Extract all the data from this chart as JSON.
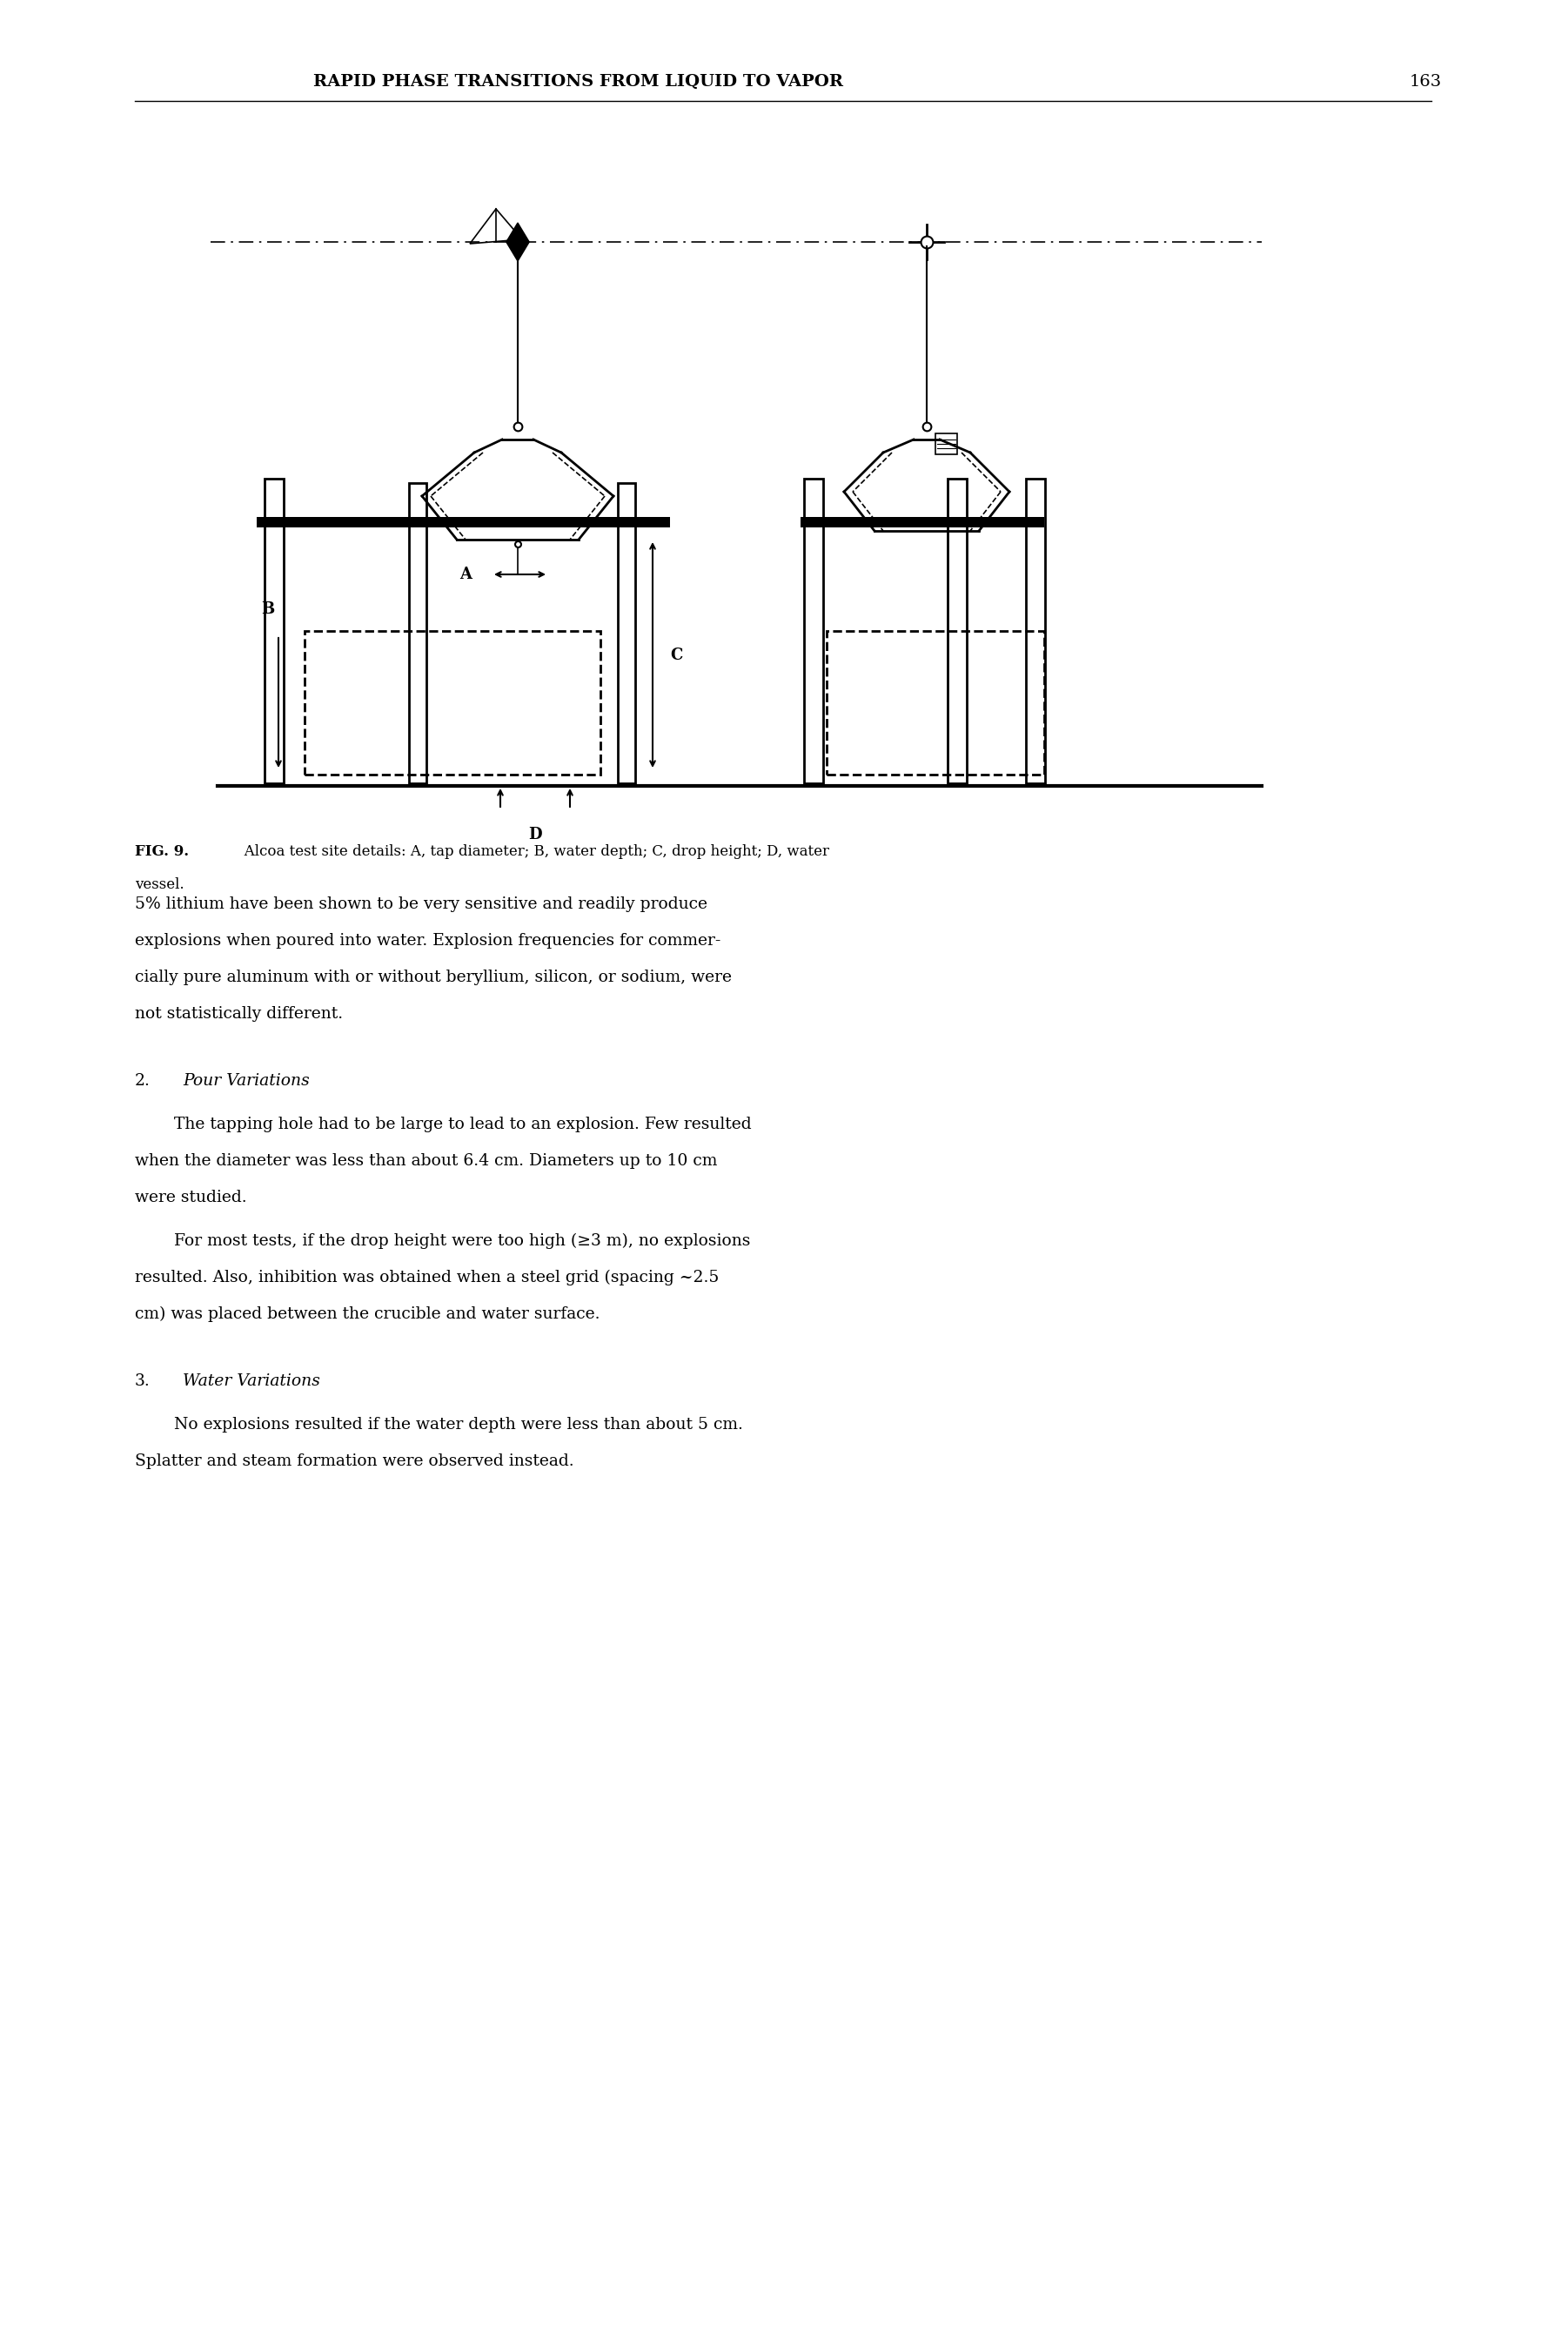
{
  "page_title": "RAPID PHASE TRANSITIONS FROM LIQUID TO VAPOR",
  "page_number": "163",
  "fig_caption_bold": "FIG. 9.",
  "fig_caption_rest": "   Alcoa test site details: A, tap diameter; B, water depth; C, drop height; D, water",
  "fig_caption_line2": "vessel.",
  "para1_lines": [
    "5% lithium have been shown to be very sensitive and readily produce",
    "explosions when poured into water. Explosion frequencies for commer-",
    "cially pure aluminum with or without beryllium, silicon, or sodium, were",
    "not statistically different."
  ],
  "section2_num": "2.",
  "section2_title": "Pour Variations",
  "para2a_lines": [
    "The tapping hole had to be large to lead to an explosion. Few resulted",
    "when the diameter was less than about 6.4 cm. Diameters up to 10 cm",
    "were studied."
  ],
  "para2b_lines": [
    "For most tests, if the drop height were too high (≥3 m), no explosions",
    "resulted. Also, inhibition was obtained when a steel grid (spacing ~2.5",
    "cm) was placed between the crucible and water surface."
  ],
  "section3_num": "3.",
  "section3_title": "Water Variations",
  "para3_lines": [
    "No explosions resulted if the water depth were less than about 5 cm.",
    "Splatter and steam formation were observed instead."
  ],
  "bg_color": "#ffffff",
  "text_color": "#000000"
}
